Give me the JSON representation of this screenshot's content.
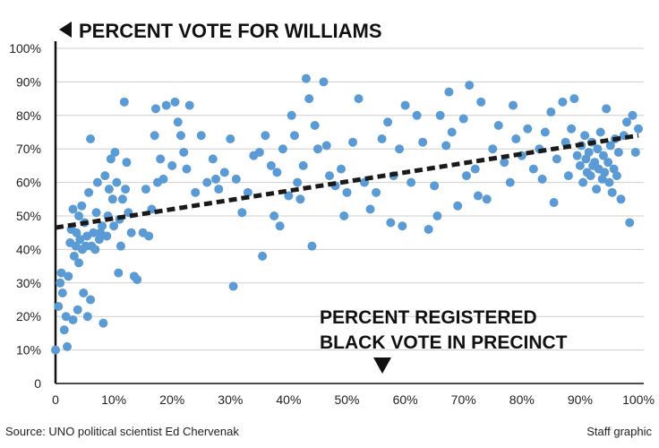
{
  "chart_data": {
    "type": "scatter",
    "title": "PERCENT VOTE FOR WILLIAMS",
    "xlabel": [
      "PERCENT REGISTERED",
      "BLACK VOTE IN PRECINCT"
    ],
    "ylabel": "PERCENT VOTE FOR WILLIAMS",
    "xlim": [
      0,
      100
    ],
    "ylim": [
      0,
      100
    ],
    "x_ticks": [
      "0",
      "10%",
      "20%",
      "30%",
      "40%",
      "50%",
      "60%",
      "70%",
      "80%",
      "90%",
      "100%"
    ],
    "y_ticks": [
      "0",
      "10%",
      "20%",
      "30%",
      "40%",
      "50%",
      "60%",
      "70%",
      "80%",
      "90%",
      "100%"
    ],
    "grid": "horizontal",
    "point_color": "#5b9bd5",
    "trend_color": "#1a1a1a",
    "trendline": {
      "x": [
        0,
        100
      ],
      "y": [
        46.5,
        74
      ]
    },
    "points": [
      [
        0,
        10
      ],
      [
        0.5,
        23
      ],
      [
        0.8,
        30
      ],
      [
        1,
        33
      ],
      [
        1.2,
        27
      ],
      [
        1.5,
        16
      ],
      [
        1.8,
        20
      ],
      [
        2,
        11
      ],
      [
        2.2,
        32
      ],
      [
        2.5,
        42
      ],
      [
        2.7,
        46
      ],
      [
        3,
        52
      ],
      [
        3,
        19
      ],
      [
        3.2,
        38
      ],
      [
        3.5,
        41
      ],
      [
        3.6,
        45
      ],
      [
        3.8,
        22
      ],
      [
        4,
        50
      ],
      [
        4,
        36
      ],
      [
        4.2,
        43
      ],
      [
        4.5,
        53
      ],
      [
        4.6,
        40
      ],
      [
        4.8,
        27
      ],
      [
        5,
        48
      ],
      [
        5.2,
        41
      ],
      [
        5.4,
        44
      ],
      [
        5.5,
        20
      ],
      [
        5.7,
        57
      ],
      [
        6,
        73
      ],
      [
        6,
        25
      ],
      [
        6.2,
        41
      ],
      [
        6.5,
        45
      ],
      [
        6.8,
        40
      ],
      [
        7,
        51
      ],
      [
        7.2,
        60
      ],
      [
        7.5,
        43
      ],
      [
        7.7,
        45
      ],
      [
        8,
        47
      ],
      [
        8.2,
        18
      ],
      [
        8.5,
        62
      ],
      [
        8.8,
        44
      ],
      [
        9,
        50
      ],
      [
        9.2,
        58
      ],
      [
        9.5,
        67
      ],
      [
        9.8,
        55
      ],
      [
        10,
        47
      ],
      [
        10.2,
        69
      ],
      [
        10.5,
        60
      ],
      [
        10.8,
        33
      ],
      [
        11,
        49
      ],
      [
        11.2,
        41
      ],
      [
        11.5,
        55
      ],
      [
        11.8,
        84
      ],
      [
        12,
        58
      ],
      [
        12.2,
        66
      ],
      [
        12.5,
        51
      ],
      [
        13,
        45
      ],
      [
        13.5,
        32
      ],
      [
        14,
        31
      ],
      [
        15,
        45
      ],
      [
        15.5,
        58
      ],
      [
        16,
        44
      ],
      [
        16.5,
        52
      ],
      [
        17,
        74
      ],
      [
        17.2,
        82
      ],
      [
        17.5,
        60
      ],
      [
        18,
        67
      ],
      [
        18.5,
        61
      ],
      [
        19,
        83
      ],
      [
        20,
        65
      ],
      [
        20.5,
        84
      ],
      [
        21,
        78
      ],
      [
        21.5,
        74
      ],
      [
        22,
        69
      ],
      [
        22.5,
        64
      ],
      [
        23,
        83
      ],
      [
        24,
        57
      ],
      [
        25,
        74
      ],
      [
        26,
        60
      ],
      [
        27,
        67
      ],
      [
        27.5,
        61
      ],
      [
        28,
        58
      ],
      [
        29,
        63
      ],
      [
        30,
        73
      ],
      [
        30.5,
        29
      ],
      [
        31,
        61
      ],
      [
        32,
        51
      ],
      [
        33,
        57
      ],
      [
        34,
        68
      ],
      [
        35,
        69
      ],
      [
        35.5,
        38
      ],
      [
        36,
        74
      ],
      [
        37,
        65
      ],
      [
        37.5,
        50
      ],
      [
        38,
        63
      ],
      [
        38.5,
        47
      ],
      [
        39,
        70
      ],
      [
        40,
        56
      ],
      [
        40.5,
        80
      ],
      [
        41,
        74
      ],
      [
        41.5,
        60
      ],
      [
        42,
        55
      ],
      [
        42.5,
        65
      ],
      [
        43,
        91
      ],
      [
        43.5,
        85
      ],
      [
        44,
        41
      ],
      [
        44.5,
        77
      ],
      [
        45,
        70
      ],
      [
        46,
        90
      ],
      [
        46.5,
        71
      ],
      [
        47,
        62
      ],
      [
        48,
        59
      ],
      [
        49,
        64
      ],
      [
        49.5,
        50
      ],
      [
        50,
        57
      ],
      [
        51,
        72
      ],
      [
        52,
        85
      ],
      [
        53,
        60
      ],
      [
        54,
        52
      ],
      [
        55,
        57
      ],
      [
        56,
        73
      ],
      [
        57,
        78
      ],
      [
        57.5,
        48
      ],
      [
        58,
        62
      ],
      [
        59,
        70
      ],
      [
        59.5,
        47
      ],
      [
        60,
        83
      ],
      [
        61,
        60
      ],
      [
        62,
        80
      ],
      [
        63,
        72
      ],
      [
        64,
        46
      ],
      [
        65,
        59
      ],
      [
        65.5,
        50
      ],
      [
        66,
        80
      ],
      [
        67,
        71
      ],
      [
        67.5,
        87
      ],
      [
        68,
        75
      ],
      [
        69,
        53
      ],
      [
        70,
        79
      ],
      [
        70.5,
        62
      ],
      [
        71,
        89
      ],
      [
        72,
        64
      ],
      [
        72.5,
        56
      ],
      [
        73,
        84
      ],
      [
        74,
        55
      ],
      [
        75,
        70
      ],
      [
        76,
        77
      ],
      [
        77,
        66
      ],
      [
        78,
        60
      ],
      [
        78.5,
        83
      ],
      [
        79,
        73
      ],
      [
        80,
        68
      ],
      [
        81,
        76
      ],
      [
        82,
        64
      ],
      [
        83,
        70
      ],
      [
        83.5,
        61
      ],
      [
        84,
        75
      ],
      [
        85,
        81
      ],
      [
        85.5,
        54
      ],
      [
        86,
        67
      ],
      [
        87,
        84
      ],
      [
        87.5,
        72
      ],
      [
        88,
        62
      ],
      [
        88.5,
        76
      ],
      [
        89,
        85
      ],
      [
        89.5,
        68
      ],
      [
        90,
        65
      ],
      [
        90.2,
        71
      ],
      [
        90.5,
        60
      ],
      [
        90.8,
        74
      ],
      [
        91,
        67
      ],
      [
        91.2,
        63
      ],
      [
        91.5,
        69
      ],
      [
        91.8,
        62
      ],
      [
        92,
        72
      ],
      [
        92.2,
        65
      ],
      [
        92.5,
        66
      ],
      [
        92.8,
        58
      ],
      [
        93,
        70
      ],
      [
        93.2,
        64
      ],
      [
        93.5,
        75
      ],
      [
        93.8,
        61
      ],
      [
        94,
        68
      ],
      [
        94.2,
        63
      ],
      [
        94.5,
        82
      ],
      [
        94.8,
        66
      ],
      [
        95,
        60
      ],
      [
        95.2,
        71
      ],
      [
        95.5,
        57
      ],
      [
        95.8,
        64
      ],
      [
        96,
        73
      ],
      [
        96.3,
        62
      ],
      [
        96.6,
        69
      ],
      [
        97,
        55
      ],
      [
        97.5,
        74
      ],
      [
        98,
        78
      ],
      [
        98.5,
        48
      ],
      [
        99,
        80
      ],
      [
        99.5,
        69
      ],
      [
        100,
        76
      ]
    ]
  },
  "footer": {
    "source": "Source: UNO political scientist Ed Chervenak",
    "credit": "Staff graphic"
  }
}
